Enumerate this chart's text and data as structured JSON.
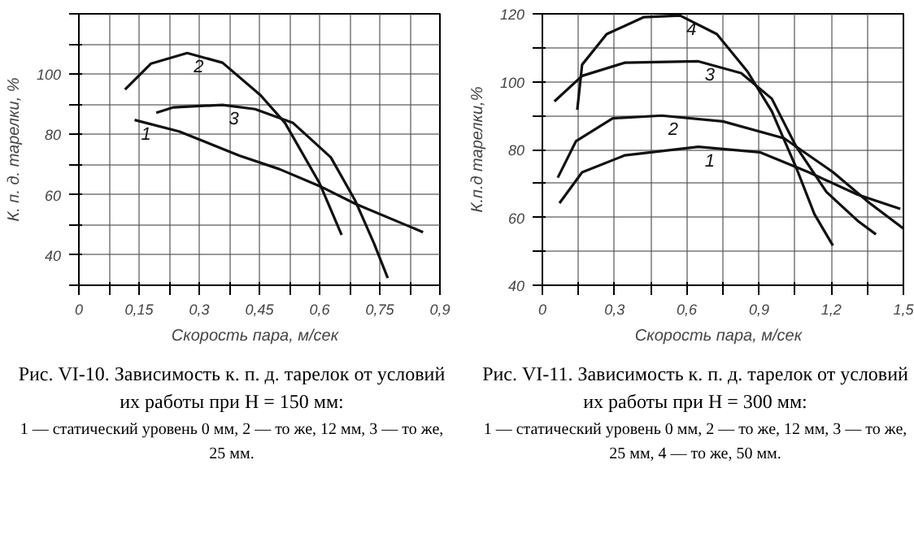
{
  "chart_data": [
    {
      "type": "line",
      "xlabel": "Скорость пара,   м/сек",
      "ylabel": "К. п. д. тарелки, %",
      "xlim": [
        0,
        0.9
      ],
      "ylim": [
        30,
        120
      ],
      "xticks": [
        0,
        {
          "value": 0.075,
          "label": null
        },
        {
          "value": 0.15,
          "label": "0,15"
        },
        {
          "value": 0.225,
          "label": null
        },
        {
          "value": 0.3,
          "label": "0,3"
        },
        {
          "value": 0.375,
          "label": null
        },
        {
          "value": 0.45,
          "label": "0,45"
        },
        {
          "value": 0.525,
          "label": null
        },
        {
          "value": 0.6,
          "label": "0,6"
        },
        {
          "value": 0.675,
          "label": null
        },
        {
          "value": 0.75,
          "label": "0,75"
        },
        {
          "value": 0.825,
          "label": null
        },
        {
          "value": 0.9,
          "label": "0,9"
        }
      ],
      "yticks": [
        {
          "value": 30,
          "label": null
        },
        40,
        {
          "value": 50,
          "label": null
        },
        60,
        {
          "value": 70,
          "label": null
        },
        80,
        {
          "value": 90,
          "label": null
        },
        100,
        {
          "value": 110,
          "label": null
        },
        {
          "value": 120,
          "label": null
        }
      ],
      "grid": true,
      "line_style": "solid",
      "series": [
        {
          "name": "1",
          "color": "#111111",
          "x": [
            0.139,
            0.25,
            0.4,
            0.5,
            0.6,
            0.689,
            0.858
          ],
          "values": [
            84.8,
            81,
            73,
            68.5,
            62.9,
            57,
            47.6
          ]
        },
        {
          "name": "2",
          "color": "#111111",
          "x": [
            0.115,
            0.18,
            0.27,
            0.358,
            0.453,
            0.514,
            0.6,
            0.655
          ],
          "values": [
            94.9,
            103.5,
            107,
            103.8,
            93,
            83.8,
            63.8,
            46.7
          ]
        },
        {
          "name": "3",
          "color": "#111111",
          "x": [
            0.193,
            0.236,
            0.358,
            0.439,
            0.534,
            0.628,
            0.689,
            0.736,
            0.77
          ],
          "values": [
            87.2,
            89,
            89.8,
            88.4,
            83.8,
            72.4,
            58,
            43.8,
            32.4
          ]
        }
      ],
      "annotations": [
        "Рис. VI-10. Зависимость к. п. д. тарелок от условий их работы при H = 150 мм:",
        "1 — статический уровень 0 мм, 2 — то же, 12 мм, 3 — то же, 25 мм."
      ]
    },
    {
      "type": "line",
      "xlabel": "Скорость пара,   м/сек",
      "ylabel": "К.п.д тарелки,%",
      "xlim": [
        0,
        1.5
      ],
      "ylim": [
        40,
        120
      ],
      "xticks": [
        0,
        {
          "value": 0.15,
          "label": null
        },
        {
          "value": 0.3,
          "label": "0,3"
        },
        {
          "value": 0.45,
          "label": null
        },
        {
          "value": 0.6,
          "label": "0,6"
        },
        {
          "value": 0.75,
          "label": null
        },
        {
          "value": 0.9,
          "label": "0,9"
        },
        {
          "value": 1.05,
          "label": null
        },
        {
          "value": 1.2,
          "label": "1,2"
        },
        {
          "value": 1.35,
          "label": null
        },
        {
          "value": 1.5,
          "label": "1,5"
        }
      ],
      "yticks": [
        40,
        {
          "value": 50,
          "label": null
        },
        60,
        {
          "value": 70,
          "label": null
        },
        80,
        {
          "value": 90,
          "label": null
        },
        100,
        {
          "value": 110,
          "label": null
        },
        120
      ],
      "grid": true,
      "line_style": "solid",
      "series": [
        {
          "name": "1",
          "color": "#111111",
          "x": [
            0.071,
            0.165,
            0.343,
            0.648,
            0.903,
            1.107,
            1.31,
            1.487
          ],
          "values": [
            64.2,
            73.3,
            78.3,
            80.8,
            79.2,
            73.3,
            66.7,
            62.5
          ]
        },
        {
          "name": "2",
          "color": "#111111",
          "x": [
            0.064,
            0.14,
            0.292,
            0.496,
            0.75,
            1.005,
            1.208,
            1.36,
            1.5
          ],
          "values": [
            71.7,
            82.5,
            89.2,
            90,
            88.3,
            83.3,
            73.3,
            64.2,
            56.7
          ]
        },
        {
          "name": "3",
          "color": "#111111",
          "x": [
            0.05,
            0.165,
            0.343,
            0.648,
            0.826,
            0.953,
            1.055,
            1.18,
            1.31,
            1.386
          ],
          "values": [
            94.2,
            101.7,
            105.6,
            106,
            102.5,
            95,
            80.8,
            67.5,
            59,
            55
          ]
        },
        {
          "name": "4",
          "color": "#111111",
          "x": [
            0.145,
            0.165,
            0.267,
            0.42,
            0.572,
            0.725,
            0.852,
            0.953,
            1.055,
            1.13,
            1.207
          ],
          "values": [
            91.7,
            105,
            114,
            119,
            119.5,
            114,
            103,
            91.3,
            74.6,
            61,
            51.7
          ]
        }
      ],
      "annotations": [
        "Рис. VI-11. Зависимость к. п. д. тарелок от условий их работы при H = 300 мм:",
        "1 — статический уровень 0 мм, 2 — то же, 12 мм, 3 — то же, 25 мм, 4 — то же, 50 мм."
      ]
    }
  ]
}
